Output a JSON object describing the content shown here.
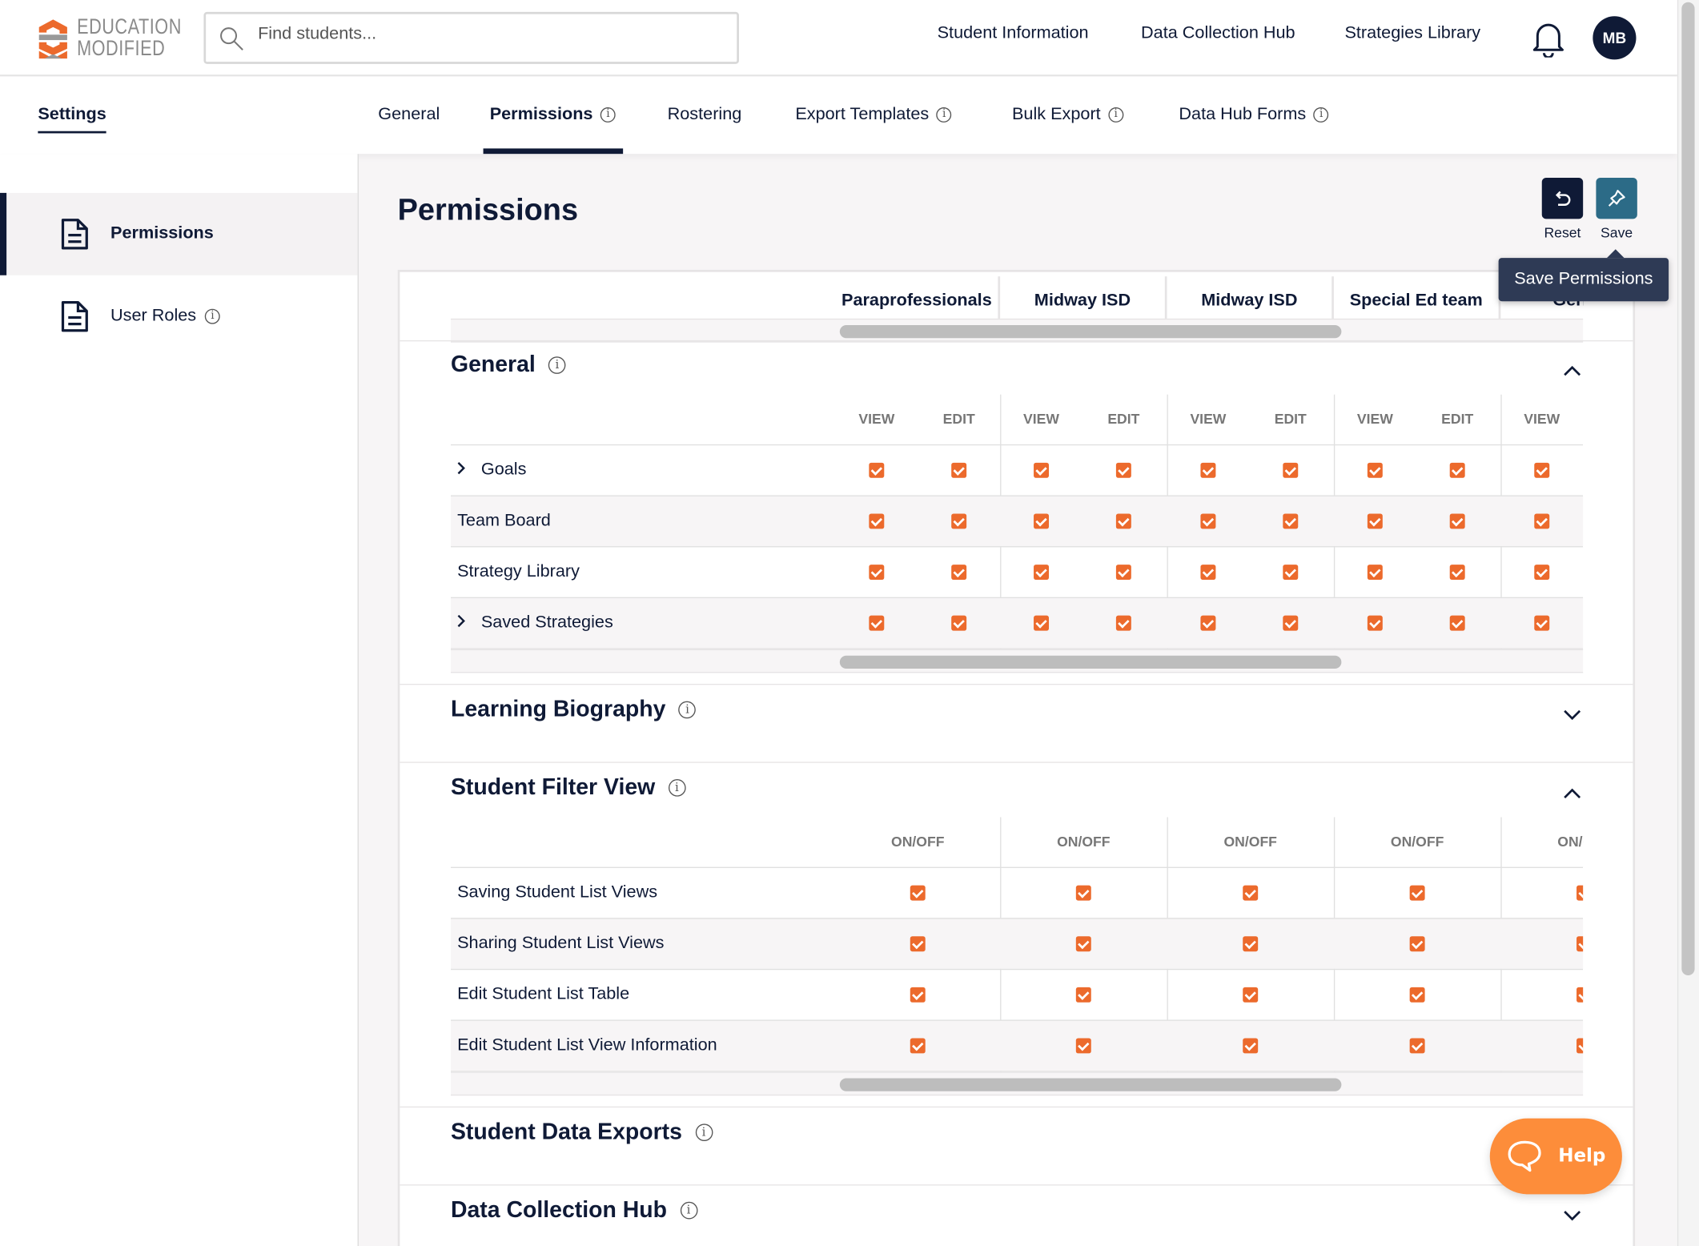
{
  "header": {
    "logo_line1": "EDUCATION",
    "logo_line2": "MODIFIED",
    "search_placeholder": "Find students...",
    "nav": [
      "Student Information",
      "Data Collection Hub",
      "Strategies Library"
    ],
    "avatar": "MB"
  },
  "tabs": {
    "settings": "Settings",
    "items": [
      {
        "label": "General",
        "info": false
      },
      {
        "label": "Permissions",
        "info": true,
        "active": true
      },
      {
        "label": "Rostering",
        "info": false
      },
      {
        "label": "Export Templates",
        "info": true
      },
      {
        "label": "Bulk Export",
        "info": true
      },
      {
        "label": "Data Hub Forms",
        "info": true
      }
    ]
  },
  "sidebar": {
    "items": [
      {
        "label": "Permissions",
        "active": true,
        "info": false
      },
      {
        "label": "User Roles",
        "info": true
      }
    ]
  },
  "main": {
    "title": "Permissions",
    "reset_label": "Reset",
    "save_label": "Save",
    "tooltip": "Save Permissions"
  },
  "roles": [
    "Paraprofessionals",
    "Midway ISD",
    "Midway ISD",
    "Special Ed team",
    "Gen Ed"
  ],
  "sections": [
    {
      "title": "General",
      "expanded": true,
      "subcols": [
        "VIEW",
        "EDIT"
      ],
      "rows": [
        {
          "label": "Goals",
          "expandable": true,
          "checks": [
            true,
            true,
            true,
            true,
            true,
            true,
            true,
            true,
            true,
            true
          ]
        },
        {
          "label": "Team Board",
          "expandable": false,
          "checks": [
            true,
            true,
            true,
            true,
            true,
            true,
            true,
            true,
            true,
            true
          ]
        },
        {
          "label": "Strategy Library",
          "expandable": false,
          "checks": [
            true,
            true,
            true,
            true,
            true,
            true,
            true,
            true,
            true,
            true
          ]
        },
        {
          "label": "Saved Strategies",
          "expandable": true,
          "checks": [
            true,
            true,
            true,
            true,
            true,
            true,
            true,
            true,
            true,
            true
          ]
        }
      ]
    },
    {
      "title": "Learning Biography",
      "expanded": false
    },
    {
      "title": "Student Filter View",
      "expanded": true,
      "subcols": [
        "ON/OFF"
      ],
      "rows": [
        {
          "label": "Saving Student List Views",
          "checks": [
            true,
            true,
            true,
            true,
            true
          ]
        },
        {
          "label": "Sharing Student List Views",
          "checks": [
            true,
            true,
            true,
            true,
            true
          ]
        },
        {
          "label": "Edit Student List Table",
          "checks": [
            true,
            true,
            true,
            true,
            true
          ]
        },
        {
          "label": "Edit Student List View Information",
          "checks": [
            true,
            true,
            true,
            true,
            true
          ]
        }
      ]
    },
    {
      "title": "Student Data Exports",
      "expanded": false
    },
    {
      "title": "Data Collection Hub",
      "expanded": false
    }
  ],
  "help_label": "Help",
  "colors": {
    "navy": "#0f1a36",
    "teal": "#2c6b87",
    "checkbox": "#ec6a2c",
    "help": "#fd8d3a"
  }
}
